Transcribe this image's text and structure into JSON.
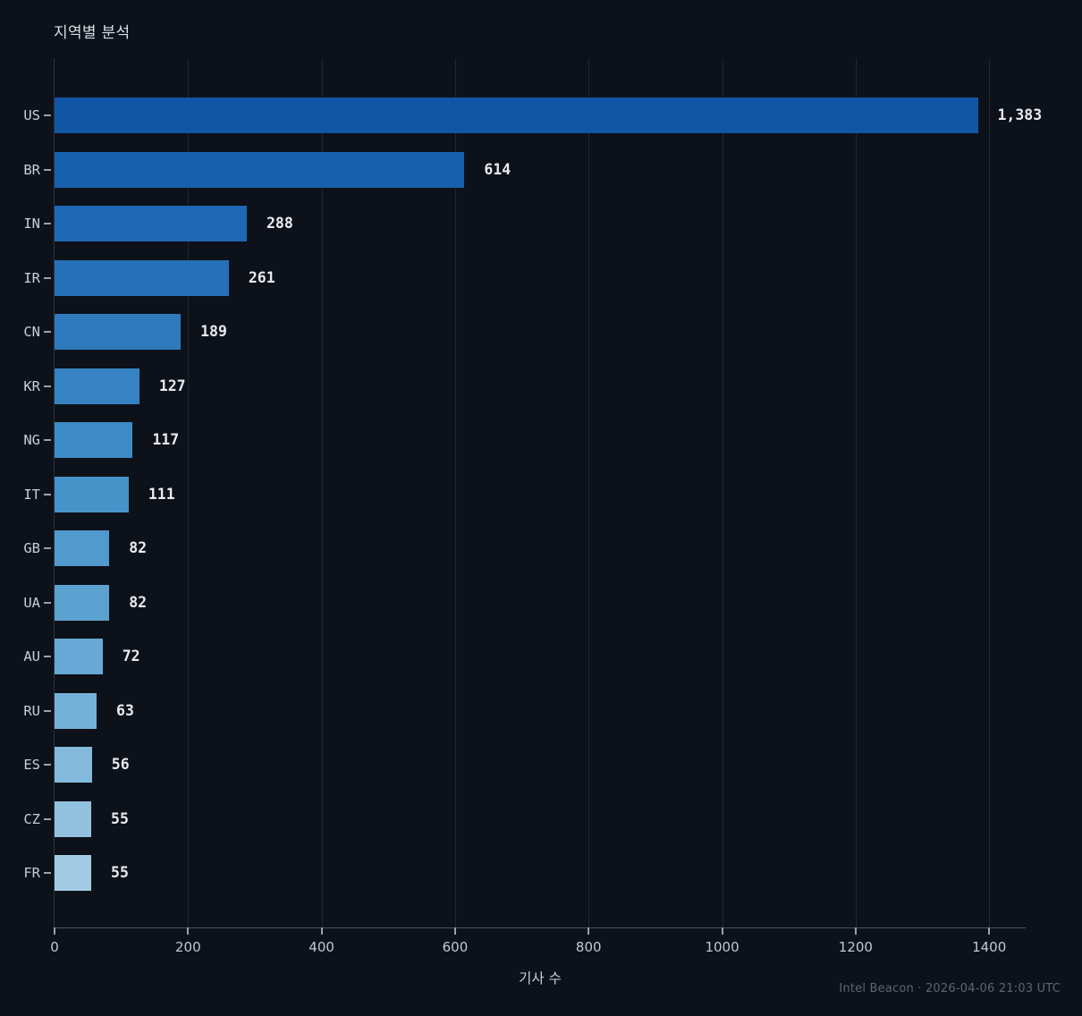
{
  "title": "지역별 분석",
  "footer": "Intel Beacon · 2026-04-06 21:03 UTC",
  "chart_data": {
    "type": "bar",
    "orientation": "horizontal",
    "title": "지역별 분석",
    "xlabel": "기사 수",
    "ylabel": "",
    "categories": [
      "US",
      "BR",
      "IN",
      "IR",
      "CN",
      "KR",
      "NG",
      "IT",
      "GB",
      "UA",
      "AU",
      "RU",
      "ES",
      "CZ",
      "FR"
    ],
    "values": [
      1383,
      614,
      288,
      261,
      189,
      127,
      117,
      111,
      82,
      82,
      72,
      63,
      56,
      55,
      55
    ],
    "value_labels": [
      "1,383",
      "614",
      "288",
      "261",
      "189",
      "127",
      "117",
      "111",
      "82",
      "82",
      "72",
      "63",
      "56",
      "55",
      "55"
    ],
    "bar_colors": [
      "#1156a5",
      "#1760ae",
      "#1f68b3",
      "#2671b8",
      "#2e7abd",
      "#3583c2",
      "#3d8bc6",
      "#4693c9",
      "#519acd",
      "#5ca2d1",
      "#67a9d4",
      "#74b1d8",
      "#83badc",
      "#92c2df",
      "#a2cbe3"
    ],
    "xlim": [
      0,
      1456
    ],
    "xticks": [
      0,
      200,
      400,
      600,
      800,
      1000,
      1200,
      1400
    ],
    "xtick_labels": [
      "0",
      "200",
      "400",
      "600",
      "800",
      "1000",
      "1200",
      "1400"
    ],
    "grid": "vertical",
    "legend": "none",
    "background_color": "#0d1119"
  }
}
